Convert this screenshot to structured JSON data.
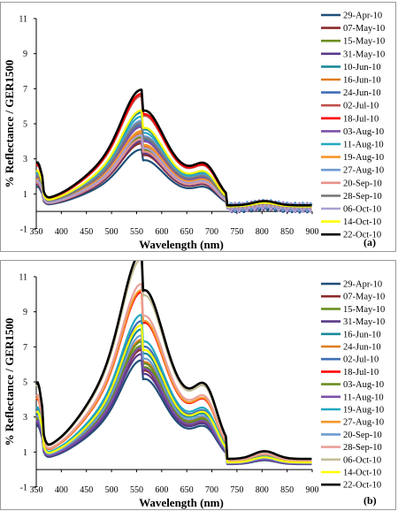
{
  "chart_data": [
    {
      "type": "line",
      "panel_label": "(a)",
      "xlabel": "Wavelength (nm)",
      "ylabel": "% Reflectance / GER1500",
      "xlim": [
        350,
        900
      ],
      "ylim": [
        -1,
        11
      ],
      "xticks": [
        350,
        400,
        450,
        500,
        550,
        600,
        650,
        700,
        750,
        800,
        850,
        900
      ],
      "yticks": [
        -1,
        1,
        3,
        5,
        7,
        9,
        11
      ],
      "grid": false,
      "legend_position": "right",
      "series": [
        {
          "name": "29-Apr-10",
          "color": "#1f4e79",
          "peak": 3.0
        },
        {
          "name": "07-May-10",
          "color": "#8b2a2a",
          "peak": 3.3
        },
        {
          "name": "15-May-10",
          "color": "#6b8e23",
          "peak": 3.6
        },
        {
          "name": "31-May-10",
          "color": "#5b3a8a",
          "peak": 3.4
        },
        {
          "name": "10-Jun-10",
          "color": "#1b8a9a",
          "peak": 4.8
        },
        {
          "name": "16-Jun-10",
          "color": "#e07b1f",
          "peak": 3.8
        },
        {
          "name": "24-Jun-10",
          "color": "#3f6fb5",
          "peak": 4.2
        },
        {
          "name": "02-Jul-10",
          "color": "#c0504d",
          "peak": 5.6
        },
        {
          "name": "18-Jul-10",
          "color": "#ff0000",
          "peak": 5.7
        },
        {
          "name": "03-Aug-10",
          "color": "#7b52a8",
          "peak": 4.1
        },
        {
          "name": "11-Aug-10",
          "color": "#22a8c2",
          "peak": 4.6
        },
        {
          "name": "19-Aug-10",
          "color": "#f5962a",
          "peak": 3.9
        },
        {
          "name": "27-Aug-10",
          "color": "#6e9bd1",
          "peak": 4.4
        },
        {
          "name": "20-Sep-10",
          "color": "#e8918a",
          "peak": 3.5
        },
        {
          "name": "28-Sep-10",
          "color": "#7a7a7a",
          "peak": 4.3
        },
        {
          "name": "06-Oct-10",
          "color": "#a99fd0",
          "peak": 3.7
        },
        {
          "name": "14-Oct-10",
          "color": "#ffff00",
          "peak": 4.9
        },
        {
          "name": "22-Oct-10",
          "color": "#000000",
          "peak": 5.9
        }
      ]
    },
    {
      "type": "line",
      "panel_label": "(b)",
      "xlabel": "Wavelength (nm)",
      "ylabel": "% Reflectance / GER1500",
      "xlim": [
        350,
        900
      ],
      "ylim": [
        -1,
        11
      ],
      "xticks": [
        350,
        400,
        450,
        500,
        550,
        600,
        650,
        700,
        750,
        800,
        850,
        900
      ],
      "yticks": [
        -1,
        1,
        3,
        5,
        7,
        9,
        11
      ],
      "grid": false,
      "legend_position": "right",
      "series": [
        {
          "name": "29-Apr-10",
          "color": "#1f4e79",
          "peak": 5.3
        },
        {
          "name": "07-May-10",
          "color": "#8b2a2a",
          "peak": 5.8
        },
        {
          "name": "15-May-10",
          "color": "#6b8e23",
          "peak": 6.0
        },
        {
          "name": "31-May-10",
          "color": "#5b3a8a",
          "peak": 5.6
        },
        {
          "name": "16-Jun-10",
          "color": "#1b8a9a",
          "peak": 6.8
        },
        {
          "name": "24-Jun-10",
          "color": "#e07b1f",
          "peak": 6.3
        },
        {
          "name": "02-Jul-10",
          "color": "#3f6fb5",
          "peak": 7.2
        },
        {
          "name": "18-Jul-10",
          "color": "#ff0000",
          "peak": 8.6
        },
        {
          "name": "03-Aug-10",
          "color": "#6b8e23",
          "peak": 6.2
        },
        {
          "name": "11-Aug-10",
          "color": "#7b52a8",
          "peak": 5.9
        },
        {
          "name": "19-Aug-10",
          "color": "#22a8c2",
          "peak": 7.5
        },
        {
          "name": "27-Aug-10",
          "color": "#f5962a",
          "peak": 8.7
        },
        {
          "name": "20-Sep-10",
          "color": "#6e9bd1",
          "peak": 6.5
        },
        {
          "name": "28-Sep-10",
          "color": "#e8a09a",
          "peak": 9.0
        },
        {
          "name": "06-Oct-10",
          "color": "#c4bd97",
          "peak": 10.2
        },
        {
          "name": "14-Oct-10",
          "color": "#ffff00",
          "peak": 7.0
        },
        {
          "name": "22-Oct-10",
          "color": "#000000",
          "peak": 10.5
        }
      ]
    }
  ]
}
